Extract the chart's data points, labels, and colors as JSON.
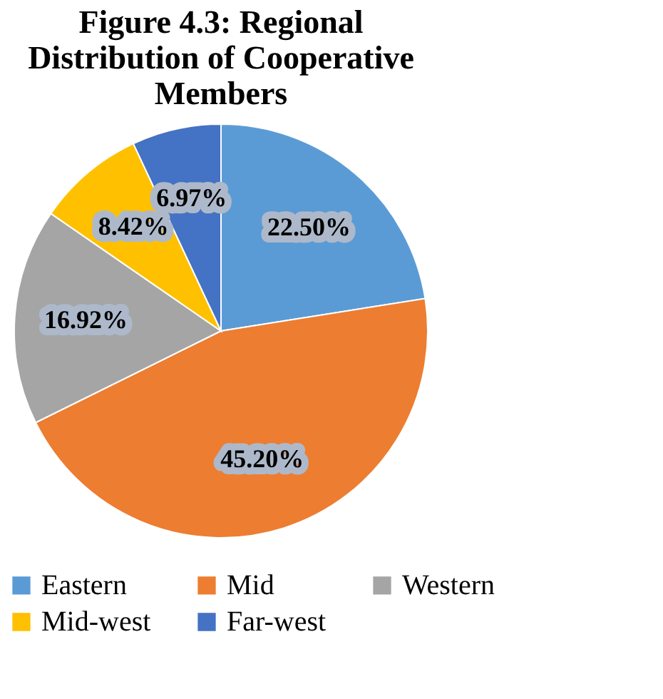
{
  "chart_data": {
    "type": "pie",
    "title": "Figure 4.3: Regional Distribution of Cooperative Members",
    "categories": [
      "Eastern",
      "Mid",
      "Western",
      "Mid-west",
      "Far-west"
    ],
    "values": [
      22.5,
      45.2,
      16.92,
      8.42,
      6.97
    ],
    "value_labels": [
      "22.50%",
      "45.20%",
      "16.92%",
      "8.42%",
      "6.97%"
    ],
    "colors": [
      "#5b9bd5",
      "#ed7d31",
      "#a5a5a5",
      "#ffc000",
      "#4472c4"
    ],
    "legend": "bottom"
  }
}
